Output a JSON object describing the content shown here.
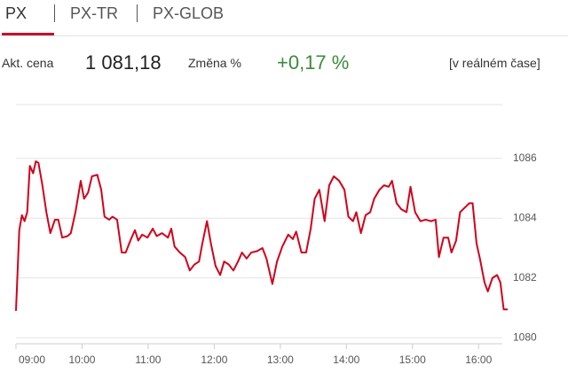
{
  "tabs": [
    "PX",
    "PX-TR",
    "PX-GLOB"
  ],
  "info": {
    "price_label": "Akt. cena",
    "price": "1 081,18",
    "change_label": "Změna %",
    "change": "+0,17 %",
    "mode": "[v reálném čase]"
  },
  "chart_data": {
    "type": "line",
    "color": "#d0021b",
    "grid": true,
    "x": [
      9.0,
      9.05,
      9.09,
      9.13,
      9.17,
      9.21,
      9.26,
      9.3,
      9.34,
      9.4,
      9.46,
      9.52,
      9.59,
      9.64,
      9.7,
      9.78,
      9.83,
      9.9,
      9.98,
      10.03,
      10.09,
      10.15,
      10.23,
      10.29,
      10.34,
      10.41,
      10.46,
      10.53,
      10.6,
      10.66,
      10.74,
      10.8,
      10.85,
      10.91,
      10.99,
      11.07,
      11.13,
      11.21,
      11.3,
      11.35,
      11.4,
      11.48,
      11.56,
      11.63,
      11.7,
      11.77,
      11.82,
      11.89,
      11.95,
      12.02,
      12.09,
      12.15,
      12.22,
      12.29,
      12.36,
      12.42,
      12.49,
      12.56,
      12.65,
      12.73,
      12.79,
      12.88,
      12.95,
      13.03,
      13.12,
      13.19,
      13.24,
      13.32,
      13.39,
      13.46,
      13.52,
      13.59,
      13.67,
      13.74,
      13.81,
      13.89,
      13.97,
      14.03,
      14.1,
      14.15,
      14.22,
      14.29,
      14.36,
      14.42,
      14.5,
      14.57,
      14.64,
      14.69,
      14.76,
      14.83,
      14.91,
      14.97,
      15.04,
      15.12,
      15.2,
      15.28,
      15.35,
      15.4,
      15.47,
      15.54,
      15.59,
      15.66,
      15.72,
      15.79,
      15.86,
      15.91,
      15.97,
      16.02,
      16.09,
      16.14,
      16.21,
      16.28,
      16.33,
      16.38,
      16.44
    ],
    "values": [
      1080.9,
      1083.6,
      1084.1,
      1083.9,
      1084.2,
      1085.75,
      1085.5,
      1085.9,
      1085.85,
      1085.1,
      1084.2,
      1083.5,
      1083.95,
      1083.95,
      1083.35,
      1083.4,
      1083.5,
      1084.2,
      1085.25,
      1084.65,
      1084.85,
      1085.4,
      1085.45,
      1084.95,
      1084.05,
      1083.95,
      1084.05,
      1083.95,
      1082.85,
      1082.85,
      1083.3,
      1083.6,
      1083.25,
      1083.45,
      1083.35,
      1083.65,
      1083.4,
      1083.5,
      1083.35,
      1083.65,
      1083.05,
      1082.85,
      1082.7,
      1082.25,
      1082.45,
      1082.55,
      1083.15,
      1083.9,
      1083.15,
      1082.4,
      1082.1,
      1082.55,
      1082.45,
      1082.25,
      1082.55,
      1082.85,
      1082.65,
      1082.85,
      1082.9,
      1083.0,
      1082.65,
      1081.8,
      1082.55,
      1083.05,
      1083.45,
      1083.3,
      1083.55,
      1082.85,
      1082.85,
      1083.65,
      1084.65,
      1084.95,
      1083.9,
      1085.1,
      1085.4,
      1085.25,
      1084.95,
      1084.05,
      1083.9,
      1084.2,
      1083.5,
      1084.1,
      1084.2,
      1084.65,
      1084.95,
      1085.1,
      1085.05,
      1085.25,
      1084.5,
      1084.3,
      1084.2,
      1085.05,
      1084.2,
      1083.9,
      1083.95,
      1083.9,
      1083.95,
      1082.7,
      1083.35,
      1083.35,
      1082.85,
      1083.25,
      1084.2,
      1084.35,
      1084.5,
      1084.5,
      1083.15,
      1082.65,
      1081.85,
      1081.55,
      1082.0,
      1082.1,
      1081.85,
      1080.95,
      1080.95
    ],
    "xlim": [
      9,
      16.44
    ],
    "xticks": [
      {
        "value": 9,
        "label": "09:00"
      },
      {
        "value": 10,
        "label": "10:00"
      },
      {
        "value": 11,
        "label": "11:00"
      },
      {
        "value": 12,
        "label": "12:00"
      },
      {
        "value": 13,
        "label": "13:00"
      },
      {
        "value": 14,
        "label": "14:00"
      },
      {
        "value": 15,
        "label": "15:00"
      },
      {
        "value": 16,
        "label": "16:00"
      }
    ],
    "ylim": [
      1079.8,
      1087.8
    ],
    "yticks": [
      1080,
      1082,
      1084,
      1086
    ]
  }
}
